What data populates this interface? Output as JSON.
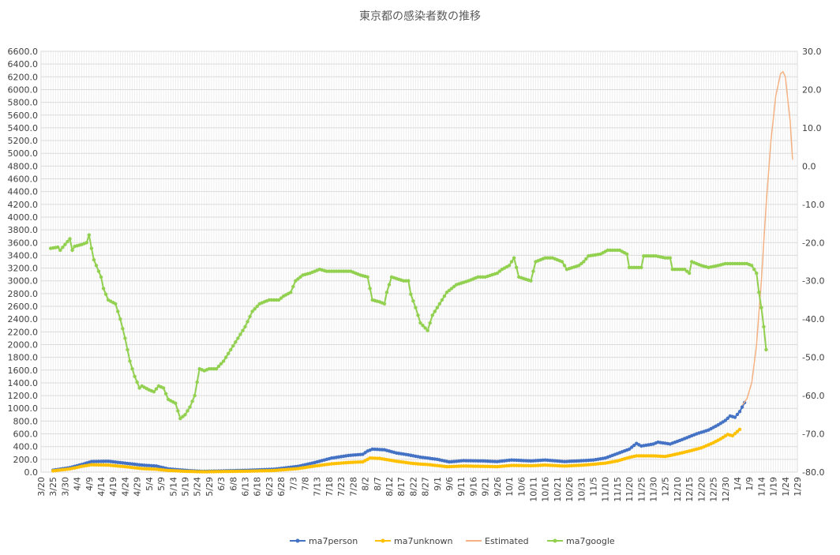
{
  "chart_data": {
    "type": "line",
    "title": "東京都の感染者数の推移",
    "left_axis": {
      "min": 0,
      "max": 6600,
      "step": 200,
      "tick_labels": [
        "0.0",
        "200.0",
        "400.0",
        "600.0",
        "800.0",
        "1000.0",
        "1200.0",
        "1400.0",
        "1600.0",
        "1800.0",
        "2000.0",
        "2200.0",
        "2400.0",
        "2600.0",
        "2800.0",
        "3000.0",
        "3200.0",
        "3400.0",
        "3600.0",
        "3800.0",
        "4000.0",
        "4200.0",
        "4400.0",
        "4600.0",
        "4800.0",
        "5000.0",
        "5200.0",
        "5400.0",
        "5600.0",
        "5800.0",
        "6000.0",
        "6200.0",
        "6400.0",
        "6600.0"
      ]
    },
    "right_axis": {
      "min": -80,
      "max": 30,
      "step": 10,
      "tick_labels": [
        "-80.0",
        "-70.0",
        "-60.0",
        "-50.0",
        "-40.0",
        "-30.0",
        "-20.0",
        "-10.0",
        "0.0",
        "10.0",
        "20.0",
        "30.0"
      ]
    },
    "x_axis": {
      "start": "2020-03-20",
      "end": "2021-01-29",
      "tick_labels": [
        "3/20",
        "3/25",
        "3/30",
        "4/4",
        "4/9",
        "4/14",
        "4/19",
        "4/24",
        "4/29",
        "5/4",
        "5/9",
        "5/14",
        "5/19",
        "5/24",
        "5/29",
        "6/3",
        "6/8",
        "6/13",
        "6/18",
        "6/23",
        "6/28",
        "7/3",
        "7/8",
        "7/13",
        "7/18",
        "7/23",
        "7/28",
        "8/2",
        "8/7",
        "8/12",
        "8/17",
        "8/22",
        "8/27",
        "9/1",
        "9/6",
        "9/11",
        "9/16",
        "9/21",
        "9/26",
        "10/1",
        "10/6",
        "10/11",
        "10/16",
        "10/21",
        "10/26",
        "10/31",
        "11/5",
        "11/10",
        "11/15",
        "11/20",
        "11/25",
        "11/30",
        "12/5",
        "12/10",
        "12/15",
        "12/20",
        "12/25",
        "12/30",
        "1/4",
        "1/9",
        "1/14",
        "1/19",
        "1/24",
        "1/29"
      ]
    },
    "grid": true,
    "legend_position": "bottom",
    "series": [
      {
        "name": "ma7person",
        "axis": "left",
        "color": "#4472C4",
        "markers": true,
        "points": [
          [
            "2020-03-25",
            30
          ],
          [
            "2020-04-01",
            70
          ],
          [
            "2020-04-06",
            120
          ],
          [
            "2020-04-10",
            165
          ],
          [
            "2020-04-17",
            170
          ],
          [
            "2020-04-24",
            140
          ],
          [
            "2020-05-01",
            110
          ],
          [
            "2020-05-07",
            95
          ],
          [
            "2020-05-12",
            50
          ],
          [
            "2020-05-20",
            25
          ],
          [
            "2020-05-26",
            12
          ],
          [
            "2020-06-05",
            20
          ],
          [
            "2020-06-15",
            30
          ],
          [
            "2020-06-25",
            45
          ],
          [
            "2020-07-05",
            90
          ],
          [
            "2020-07-12",
            150
          ],
          [
            "2020-07-19",
            220
          ],
          [
            "2020-07-26",
            260
          ],
          [
            "2020-08-01",
            280
          ],
          [
            "2020-08-03",
            330
          ],
          [
            "2020-08-05",
            360
          ],
          [
            "2020-08-10",
            350
          ],
          [
            "2020-08-15",
            300
          ],
          [
            "2020-08-20",
            270
          ],
          [
            "2020-08-25",
            235
          ],
          [
            "2020-09-01",
            200
          ],
          [
            "2020-09-06",
            160
          ],
          [
            "2020-09-12",
            180
          ],
          [
            "2020-09-20",
            175
          ],
          [
            "2020-09-26",
            165
          ],
          [
            "2020-10-02",
            190
          ],
          [
            "2020-10-10",
            175
          ],
          [
            "2020-10-16",
            190
          ],
          [
            "2020-10-24",
            165
          ],
          [
            "2020-11-01",
            180
          ],
          [
            "2020-11-05",
            190
          ],
          [
            "2020-11-10",
            220
          ],
          [
            "2020-11-15",
            290
          ],
          [
            "2020-11-20",
            360
          ],
          [
            "2020-11-23",
            450
          ],
          [
            "2020-11-25",
            410
          ],
          [
            "2020-11-30",
            440
          ],
          [
            "2020-12-02",
            470
          ],
          [
            "2020-12-07",
            440
          ],
          [
            "2020-12-12",
            510
          ],
          [
            "2020-12-18",
            600
          ],
          [
            "2020-12-23",
            660
          ],
          [
            "2020-12-27",
            740
          ],
          [
            "2020-12-30",
            810
          ],
          [
            "2021-01-01",
            880
          ],
          [
            "2021-01-03",
            860
          ],
          [
            "2021-01-05",
            950
          ],
          [
            "2021-01-07",
            1090
          ]
        ]
      },
      {
        "name": "ma7unknown",
        "axis": "left",
        "color": "#FFC000",
        "markers": true,
        "points": [
          [
            "2020-03-25",
            20
          ],
          [
            "2020-04-01",
            50
          ],
          [
            "2020-04-06",
            90
          ],
          [
            "2020-04-10",
            115
          ],
          [
            "2020-04-17",
            110
          ],
          [
            "2020-04-24",
            85
          ],
          [
            "2020-05-01",
            55
          ],
          [
            "2020-05-07",
            45
          ],
          [
            "2020-05-12",
            25
          ],
          [
            "2020-05-20",
            12
          ],
          [
            "2020-05-26",
            5
          ],
          [
            "2020-06-05",
            10
          ],
          [
            "2020-06-15",
            15
          ],
          [
            "2020-06-25",
            25
          ],
          [
            "2020-07-05",
            55
          ],
          [
            "2020-07-12",
            95
          ],
          [
            "2020-07-19",
            130
          ],
          [
            "2020-07-26",
            150
          ],
          [
            "2020-08-01",
            160
          ],
          [
            "2020-08-04",
            220
          ],
          [
            "2020-08-08",
            215
          ],
          [
            "2020-08-15",
            170
          ],
          [
            "2020-08-22",
            135
          ],
          [
            "2020-08-29",
            115
          ],
          [
            "2020-09-05",
            85
          ],
          [
            "2020-09-12",
            95
          ],
          [
            "2020-09-20",
            90
          ],
          [
            "2020-09-26",
            85
          ],
          [
            "2020-10-02",
            105
          ],
          [
            "2020-10-10",
            100
          ],
          [
            "2020-10-16",
            110
          ],
          [
            "2020-10-24",
            95
          ],
          [
            "2020-11-01",
            110
          ],
          [
            "2020-11-10",
            140
          ],
          [
            "2020-11-15",
            175
          ],
          [
            "2020-11-20",
            230
          ],
          [
            "2020-11-23",
            255
          ],
          [
            "2020-11-30",
            255
          ],
          [
            "2020-12-05",
            245
          ],
          [
            "2020-12-10",
            285
          ],
          [
            "2020-12-15",
            330
          ],
          [
            "2020-12-20",
            380
          ],
          [
            "2020-12-25",
            460
          ],
          [
            "2020-12-28",
            520
          ],
          [
            "2020-12-31",
            590
          ],
          [
            "2021-01-02",
            570
          ],
          [
            "2021-01-05",
            670
          ]
        ]
      },
      {
        "name": "Estimated",
        "axis": "left",
        "color": "#F4B183",
        "markers": false,
        "points": [
          [
            "2021-01-06",
            1050
          ],
          [
            "2021-01-08",
            1150
          ],
          [
            "2021-01-10",
            1400
          ],
          [
            "2021-01-12",
            2000
          ],
          [
            "2021-01-14",
            3000
          ],
          [
            "2021-01-16",
            4200
          ],
          [
            "2021-01-18",
            5200
          ],
          [
            "2021-01-20",
            5900
          ],
          [
            "2021-01-22",
            6250
          ],
          [
            "2021-01-23",
            6280
          ],
          [
            "2021-01-24",
            6200
          ],
          [
            "2021-01-26",
            5500
          ],
          [
            "2021-01-27",
            4900
          ]
        ]
      },
      {
        "name": "ma7google",
        "axis": "right",
        "color": "#92D050",
        "markers": true,
        "points": [
          [
            "2020-03-24",
            -21.5
          ],
          [
            "2020-03-27",
            -21.2
          ],
          [
            "2020-03-28",
            -22
          ],
          [
            "2020-03-30",
            -20.5
          ],
          [
            "2020-04-01",
            -19
          ],
          [
            "2020-04-02",
            -22
          ],
          [
            "2020-04-03",
            -21
          ],
          [
            "2020-04-06",
            -20.5
          ],
          [
            "2020-04-08",
            -20
          ],
          [
            "2020-04-09",
            -18
          ],
          [
            "2020-04-10",
            -21.5
          ],
          [
            "2020-04-11",
            -24.5
          ],
          [
            "2020-04-12",
            -26
          ],
          [
            "2020-04-14",
            -29
          ],
          [
            "2020-04-15",
            -32
          ],
          [
            "2020-04-17",
            -35
          ],
          [
            "2020-04-20",
            -36
          ],
          [
            "2020-04-22",
            -40
          ],
          [
            "2020-04-24",
            -45
          ],
          [
            "2020-04-26",
            -51
          ],
          [
            "2020-04-28",
            -55
          ],
          [
            "2020-04-30",
            -58
          ],
          [
            "2020-05-01",
            -57.5
          ],
          [
            "2020-05-04",
            -58.5
          ],
          [
            "2020-05-06",
            -59
          ],
          [
            "2020-05-08",
            -57.5
          ],
          [
            "2020-05-10",
            -58
          ],
          [
            "2020-05-12",
            -61
          ],
          [
            "2020-05-15",
            -62
          ],
          [
            "2020-05-17",
            -66
          ],
          [
            "2020-05-19",
            -65
          ],
          [
            "2020-05-21",
            -63
          ],
          [
            "2020-05-23",
            -60
          ],
          [
            "2020-05-25",
            -53
          ],
          [
            "2020-05-27",
            -53.5
          ],
          [
            "2020-05-29",
            -53
          ],
          [
            "2020-06-01",
            -53
          ],
          [
            "2020-06-04",
            -51
          ],
          [
            "2020-06-07",
            -48
          ],
          [
            "2020-06-10",
            -45
          ],
          [
            "2020-06-13",
            -42
          ],
          [
            "2020-06-16",
            -38
          ],
          [
            "2020-06-19",
            -36
          ],
          [
            "2020-06-23",
            -35
          ],
          [
            "2020-06-27",
            -35
          ],
          [
            "2020-06-29",
            -34
          ],
          [
            "2020-07-02",
            -33
          ],
          [
            "2020-07-04",
            -30
          ],
          [
            "2020-07-07",
            -28.5
          ],
          [
            "2020-07-10",
            -28
          ],
          [
            "2020-07-14",
            -27
          ],
          [
            "2020-07-17",
            -27.5
          ],
          [
            "2020-07-22",
            -27.5
          ],
          [
            "2020-07-27",
            -27.5
          ],
          [
            "2020-07-31",
            -28.5
          ],
          [
            "2020-08-03",
            -29
          ],
          [
            "2020-08-05",
            -35
          ],
          [
            "2020-08-08",
            -35.5
          ],
          [
            "2020-08-10",
            -36
          ],
          [
            "2020-08-11",
            -33
          ],
          [
            "2020-08-13",
            -29
          ],
          [
            "2020-08-18",
            -30
          ],
          [
            "2020-08-20",
            -30
          ],
          [
            "2020-08-21",
            -33.5
          ],
          [
            "2020-08-23",
            -37
          ],
          [
            "2020-08-25",
            -41
          ],
          [
            "2020-08-28",
            -43
          ],
          [
            "2020-08-30",
            -39
          ],
          [
            "2020-09-02",
            -36
          ],
          [
            "2020-09-05",
            -33
          ],
          [
            "2020-09-09",
            -31
          ],
          [
            "2020-09-14",
            -30
          ],
          [
            "2020-09-18",
            -29
          ],
          [
            "2020-09-21",
            -29
          ],
          [
            "2020-09-26",
            -28
          ],
          [
            "2020-09-28",
            -27
          ],
          [
            "2020-10-01",
            -26
          ],
          [
            "2020-10-03",
            -24
          ],
          [
            "2020-10-05",
            -29
          ],
          [
            "2020-10-10",
            -30
          ],
          [
            "2020-10-12",
            -25
          ],
          [
            "2020-10-16",
            -24
          ],
          [
            "2020-10-19",
            -24
          ],
          [
            "2020-10-23",
            -25
          ],
          [
            "2020-10-25",
            -27
          ],
          [
            "2020-10-30",
            -26
          ],
          [
            "2020-11-01",
            -25
          ],
          [
            "2020-11-03",
            -23.5
          ],
          [
            "2020-11-08",
            -23
          ],
          [
            "2020-11-11",
            -22
          ],
          [
            "2020-11-16",
            -22
          ],
          [
            "2020-11-19",
            -23
          ],
          [
            "2020-11-20",
            -26.5
          ],
          [
            "2020-11-25",
            -26.5
          ],
          [
            "2020-11-26",
            -23.5
          ],
          [
            "2020-12-01",
            -23.5
          ],
          [
            "2020-12-05",
            -24
          ],
          [
            "2020-12-07",
            -24
          ],
          [
            "2020-12-08",
            -27
          ],
          [
            "2020-12-13",
            -27
          ],
          [
            "2020-12-15",
            -28
          ],
          [
            "2020-12-16",
            -25
          ],
          [
            "2020-12-20",
            -26
          ],
          [
            "2020-12-23",
            -26.5
          ],
          [
            "2020-12-27",
            -26
          ],
          [
            "2020-12-30",
            -25.5
          ],
          [
            "2021-01-04",
            -25.5
          ],
          [
            "2021-01-08",
            -25.5
          ],
          [
            "2021-01-10",
            -26
          ],
          [
            "2021-01-12",
            -28
          ],
          [
            "2021-01-13",
            -33
          ],
          [
            "2021-01-14",
            -37
          ],
          [
            "2021-01-15",
            -42
          ],
          [
            "2021-01-16",
            -48
          ]
        ]
      }
    ]
  }
}
